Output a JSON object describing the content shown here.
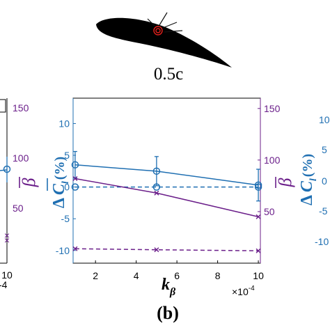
{
  "airfoil": {
    "position_label": "0.5c"
  },
  "panel_label": "(b)",
  "colors": {
    "blue": "#1f6fb2",
    "purple": "#6b1f8a",
    "red": "#e0201b"
  },
  "left_panel_fragment": {
    "right_axis_ticks": [
      "150",
      "100",
      "50"
    ],
    "right_axis_symbol": "β",
    "x_tick": "10",
    "x_exponent": "-4"
  },
  "right_panel_fragment": {
    "left_axis_ticks": [
      "10",
      "5",
      "0",
      "-5",
      "-10"
    ],
    "ylabel_prefix": "Δ",
    "ylabel_symbol": "C",
    "ylabel_subscript": "l",
    "ylabel_unit": "(%)"
  },
  "chart_data": {
    "type": "line",
    "xlabel": "k",
    "xlabel_subscript": "β",
    "x_multiplier": "×10",
    "x_multiplier_exponent": "-4",
    "xlim": [
      0.9,
      10.1
    ],
    "x_ticks": [
      "2",
      "4",
      "6",
      "8",
      "10"
    ],
    "left_axis": {
      "label_prefix": "Δ",
      "label_symbol": "C",
      "label_subscript": "l",
      "label_unit": "(%)",
      "ylim": [
        -12,
        14
      ],
      "ticks": [
        "10",
        "5",
        "0",
        "-5",
        "-10"
      ],
      "color": "#1f6fb2"
    },
    "right_axis": {
      "label_symbol": "β",
      "ylim": [
        0,
        160
      ],
      "ticks": [
        "150",
        "100",
        "50"
      ],
      "color": "#6b1f8a"
    },
    "series": [
      {
        "axis": "left",
        "style": "solid",
        "marker": "circle",
        "color": "#1f6fb2",
        "x": [
          1,
          5,
          10
        ],
        "y": [
          3.5,
          2.5,
          0.3
        ],
        "err": [
          2.1,
          2.3,
          2.5
        ]
      },
      {
        "axis": "left",
        "style": "dashed",
        "marker": "circle",
        "color": "#1f6fb2",
        "x": [
          1,
          5,
          10
        ],
        "y": [
          0,
          0,
          0
        ]
      },
      {
        "axis": "right",
        "style": "solid",
        "marker": "x",
        "color": "#6b1f8a",
        "x": [
          1,
          5,
          10
        ],
        "y": [
          82,
          68,
          45
        ]
      },
      {
        "axis": "right",
        "style": "dashed",
        "marker": "x",
        "color": "#6b1f8a",
        "x": [
          1,
          5,
          10
        ],
        "y": [
          14,
          13,
          12
        ]
      }
    ]
  }
}
